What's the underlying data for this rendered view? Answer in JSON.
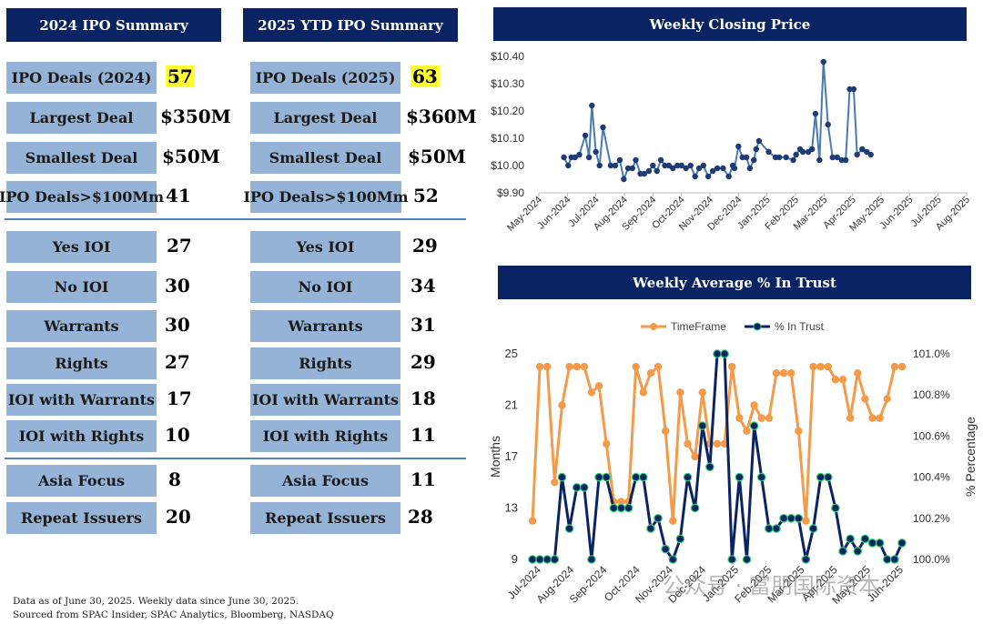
{
  "summary_2024": {
    "title": "2024 IPO Summary",
    "rows": [
      {
        "label": "IPO Deals (2024)",
        "value": "57"
      },
      {
        "label": "Largest Deal",
        "value": "$350M"
      },
      {
        "label": "Smallest Deal",
        "value": "$50M"
      },
      {
        "label": "IPO Deals>$100Mm",
        "value": "41"
      },
      {
        "label": "Yes IOI",
        "value": "27"
      },
      {
        "label": "No IOI",
        "value": "30"
      },
      {
        "label": "Warrants",
        "value": "30"
      },
      {
        "label": "Rights",
        "value": "27"
      },
      {
        "label": "IOI with Warrants",
        "value": "17"
      },
      {
        "label": "IOI with Rights",
        "value": "10"
      },
      {
        "label": "Asia Focus",
        "value": "8"
      },
      {
        "label": "Repeat Issuers",
        "value": "20"
      }
    ]
  },
  "summary_2025": {
    "title": "2025 YTD IPO Summary",
    "rows": [
      {
        "label": "IPO Deals (2025)",
        "value": "63"
      },
      {
        "label": "Largest Deal",
        "value": "$360M"
      },
      {
        "label": "Smallest Deal",
        "value": "$50M"
      },
      {
        "label": "IPO Deals>$100Mm",
        "value": "52"
      },
      {
        "label": "Yes IOI",
        "value": "29"
      },
      {
        "label": "No IOI",
        "value": "34"
      },
      {
        "label": "Warrants",
        "value": "31"
      },
      {
        "label": "Rights",
        "value": "29"
      },
      {
        "label": "IOI with Warrants",
        "value": "18"
      },
      {
        "label": "IOI with Rights",
        "value": "11"
      },
      {
        "label": "Asia Focus",
        "value": "11"
      },
      {
        "label": "Repeat Issuers",
        "value": "28"
      }
    ]
  },
  "footer": {
    "line1": "Data as of June 30, 2025. Weekly data since June 30, 2025.",
    "line2": "Sourced from SPAC Insider, SPAC Analytics, Bloomberg, NASDAQ"
  },
  "watermark": "公众号 · 富朋国际资本",
  "colors": {
    "header": "#0a2463",
    "label_bg": "#95b3d7",
    "highlight": "#ffff33",
    "price_line": "#4a7ab5",
    "price_marker": "#1f3b73",
    "timeframe": "#f39b4a",
    "trust": "#0a2463",
    "trust_marker_edge": "#2ecc71"
  },
  "chart_data": [
    {
      "type": "line",
      "title": "Weekly Closing Price",
      "y_ticks": [
        "$9.90",
        "$10.00",
        "$10.10",
        "$10.20",
        "$10.30",
        "$10.40"
      ],
      "ylim": [
        9.9,
        10.4
      ],
      "x_ticks": [
        "May-2024",
        "Jun-2024",
        "Jul-2024",
        "Aug-2024",
        "Sep-2024",
        "Oct-2024",
        "Nov-2024",
        "Dec-2024",
        "Jan-2025",
        "Feb-2025",
        "Mar-2025",
        "Apr-2025",
        "May-2025",
        "Jun-2025",
        "Jul-2025",
        "Aug-2025"
      ],
      "x_months": [
        0,
        15
      ],
      "series": [
        {
          "name": "Weekly Closing Price",
          "x": [
            0.88,
            1.03,
            1.14,
            1.27,
            1.42,
            1.63,
            1.76,
            1.86,
            2.0,
            2.13,
            2.25,
            2.52,
            2.68,
            2.84,
            2.98,
            3.13,
            3.28,
            3.4,
            3.56,
            3.7,
            3.86,
            4.0,
            4.14,
            4.28,
            4.42,
            4.56,
            4.7,
            4.86,
            5.0,
            5.16,
            5.32,
            5.48,
            5.62,
            5.77,
            5.94,
            6.1,
            6.26,
            6.46,
            6.66,
            6.8,
            6.86,
            7.0,
            7.14,
            7.28,
            7.4,
            7.54,
            7.62,
            7.72,
            8.06,
            8.3,
            8.43,
            8.67,
            8.92,
            9.02,
            9.16,
            9.26,
            9.45,
            9.58,
            9.7,
            9.84,
            9.98,
            10.14,
            10.3,
            10.46,
            10.62,
            10.76,
            10.9,
            11.04,
            11.16,
            11.34,
            11.5,
            11.64
          ],
          "values": [
            10.03,
            10.0,
            10.03,
            10.03,
            10.04,
            10.11,
            10.03,
            10.22,
            10.05,
            10.0,
            10.14,
            10.0,
            10.0,
            10.02,
            9.95,
            9.99,
            9.99,
            10.02,
            9.97,
            9.97,
            9.98,
            10.0,
            9.98,
            10.02,
            10.0,
            10.0,
            9.99,
            10.0,
            10.0,
            9.99,
            10.0,
            9.96,
            9.99,
            10.0,
            9.96,
            9.98,
            9.99,
            9.99,
            9.96,
            10.0,
            9.99,
            10.07,
            10.03,
            10.03,
            9.99,
            10.02,
            10.06,
            10.09,
            10.05,
            10.03,
            10.03,
            10.03,
            10.02,
            10.04,
            10.06,
            10.05,
            10.05,
            10.06,
            10.19,
            10.02,
            10.38,
            10.15,
            10.03,
            10.03,
            10.02,
            10.02,
            10.28,
            10.28,
            10.04,
            10.06,
            10.05,
            10.04
          ]
        }
      ]
    },
    {
      "type": "line",
      "title": "Weekly Average % In Trust",
      "legend": [
        "TimeFrame",
        "% In Trust"
      ],
      "ylabel_left": "Months",
      "ylabel_right": "% Percentage",
      "y_left_ticks": [
        "9",
        "13",
        "17",
        "21",
        "25"
      ],
      "ylim_left": [
        9,
        25
      ],
      "y_right_ticks": [
        "100.0%",
        "100.2%",
        "100.4%",
        "100.6%",
        "100.8%",
        "101.0%"
      ],
      "ylim_right": [
        100.0,
        101.0
      ],
      "x_ticks": [
        "Jul-2024",
        "Aug-2024",
        "Sep-2024",
        "Oct-2024",
        "Nov-2024",
        "Dec-2024",
        "Jan-2025",
        "Feb-2025",
        "Mar-2025",
        "Apr-2025",
        "May-2025",
        "Jun-2025"
      ],
      "series": [
        {
          "name": "TimeFrame",
          "axis": "left",
          "values": [
            12,
            24,
            24,
            15,
            21,
            24,
            24,
            24,
            22,
            22.5,
            18,
            13.5,
            13.5,
            13.5,
            24,
            22,
            23.5,
            24,
            19,
            12,
            22,
            18,
            17,
            22,
            18,
            18,
            18,
            24,
            20,
            19,
            21,
            20,
            20,
            23.5,
            23.5,
            23.5,
            19,
            12,
            24,
            24,
            24,
            23,
            23,
            20,
            23.5,
            21.5,
            20,
            20,
            21.5,
            24,
            24
          ]
        },
        {
          "name": "% In Trust",
          "axis": "right",
          "values": [
            100.0,
            100.0,
            100.0,
            100.0,
            100.4,
            100.15,
            100.35,
            100.35,
            100.0,
            100.4,
            100.4,
            100.25,
            100.25,
            100.25,
            100.4,
            100.4,
            100.15,
            100.2,
            100.05,
            100.0,
            100.1,
            100.4,
            100.25,
            100.65,
            100.45,
            101.0,
            101.0,
            100.0,
            100.4,
            100.0,
            100.65,
            100.4,
            100.15,
            100.15,
            100.2,
            100.2,
            100.2,
            100.0,
            100.15,
            100.4,
            100.4,
            100.25,
            100.04,
            100.1,
            100.04,
            100.1,
            100.08,
            100.08,
            100.0,
            100.0,
            100.08
          ]
        }
      ]
    }
  ]
}
